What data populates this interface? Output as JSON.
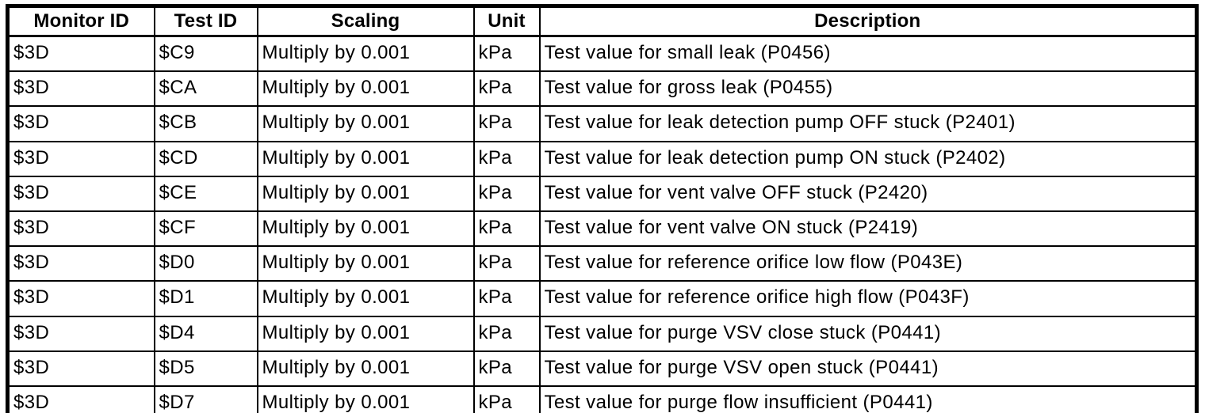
{
  "table": {
    "columns": [
      {
        "key": "monitor_id",
        "label": "Monitor ID"
      },
      {
        "key": "test_id",
        "label": "Test ID"
      },
      {
        "key": "scaling",
        "label": "Scaling"
      },
      {
        "key": "unit",
        "label": "Unit"
      },
      {
        "key": "description",
        "label": "Description"
      }
    ],
    "rows": [
      [
        "$3D",
        "$C9",
        "Multiply by 0.001",
        "kPa",
        "Test value for small leak (P0456)"
      ],
      [
        "$3D",
        "$CA",
        "Multiply by 0.001",
        "kPa",
        "Test value for gross leak (P0455)"
      ],
      [
        "$3D",
        "$CB",
        "Multiply by 0.001",
        "kPa",
        "Test value for leak detection pump OFF stuck (P2401)"
      ],
      [
        "$3D",
        "$CD",
        "Multiply by 0.001",
        "kPa",
        "Test value for leak detection pump ON stuck (P2402)"
      ],
      [
        "$3D",
        "$CE",
        "Multiply by 0.001",
        "kPa",
        "Test value for vent valve OFF stuck (P2420)"
      ],
      [
        "$3D",
        "$CF",
        "Multiply by 0.001",
        "kPa",
        "Test value for vent valve ON stuck (P2419)"
      ],
      [
        "$3D",
        "$D0",
        "Multiply by 0.001",
        "kPa",
        "Test value for reference orifice low flow (P043E)"
      ],
      [
        "$3D",
        "$D1",
        "Multiply by 0.001",
        "kPa",
        "Test value for reference orifice high flow (P043F)"
      ],
      [
        "$3D",
        "$D4",
        "Multiply by 0.001",
        "kPa",
        "Test value for purge VSV close stuck (P0441)"
      ],
      [
        "$3D",
        "$D5",
        "Multiply by 0.001",
        "kPa",
        "Test value for purge VSV open stuck (P0441)"
      ],
      [
        "$3D",
        "$D7",
        "Multiply by 0.001",
        "kPa",
        "Test value for purge flow insufficient (P0441)"
      ]
    ],
    "colors": {
      "border": "#000000",
      "background": "#ffffff",
      "text": "#000000"
    }
  }
}
